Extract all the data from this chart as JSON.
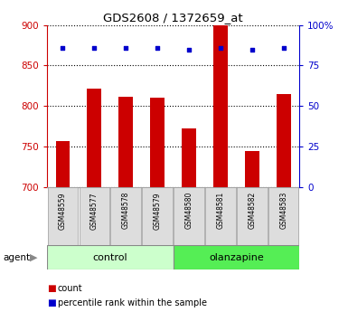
{
  "title": "GDS2608 / 1372659_at",
  "samples": [
    "GSM48559",
    "GSM48577",
    "GSM48578",
    "GSM48579",
    "GSM48580",
    "GSM48581",
    "GSM48582",
    "GSM48583"
  ],
  "red_values": [
    757,
    822,
    812,
    810,
    773,
    900,
    745,
    815
  ],
  "blue_values": [
    86,
    86,
    86,
    86,
    85,
    86,
    85,
    86
  ],
  "ylim_left": [
    700,
    900
  ],
  "ylim_right": [
    0,
    100
  ],
  "yticks_left": [
    700,
    750,
    800,
    850,
    900
  ],
  "yticks_right": [
    0,
    25,
    50,
    75,
    100
  ],
  "n_control": 4,
  "n_olanzapine": 4,
  "control_label": "control",
  "olanzapine_label": "olanzapine",
  "agent_label": "agent",
  "bar_color": "#cc0000",
  "dot_color": "#0000cc",
  "control_color": "#ccffcc",
  "olanzapine_color": "#55ee55",
  "left_axis_color": "#cc0000",
  "right_axis_color": "#0000cc",
  "legend_count": "count",
  "legend_percentile": "percentile rank within the sample",
  "bg_color": "#ffffff"
}
